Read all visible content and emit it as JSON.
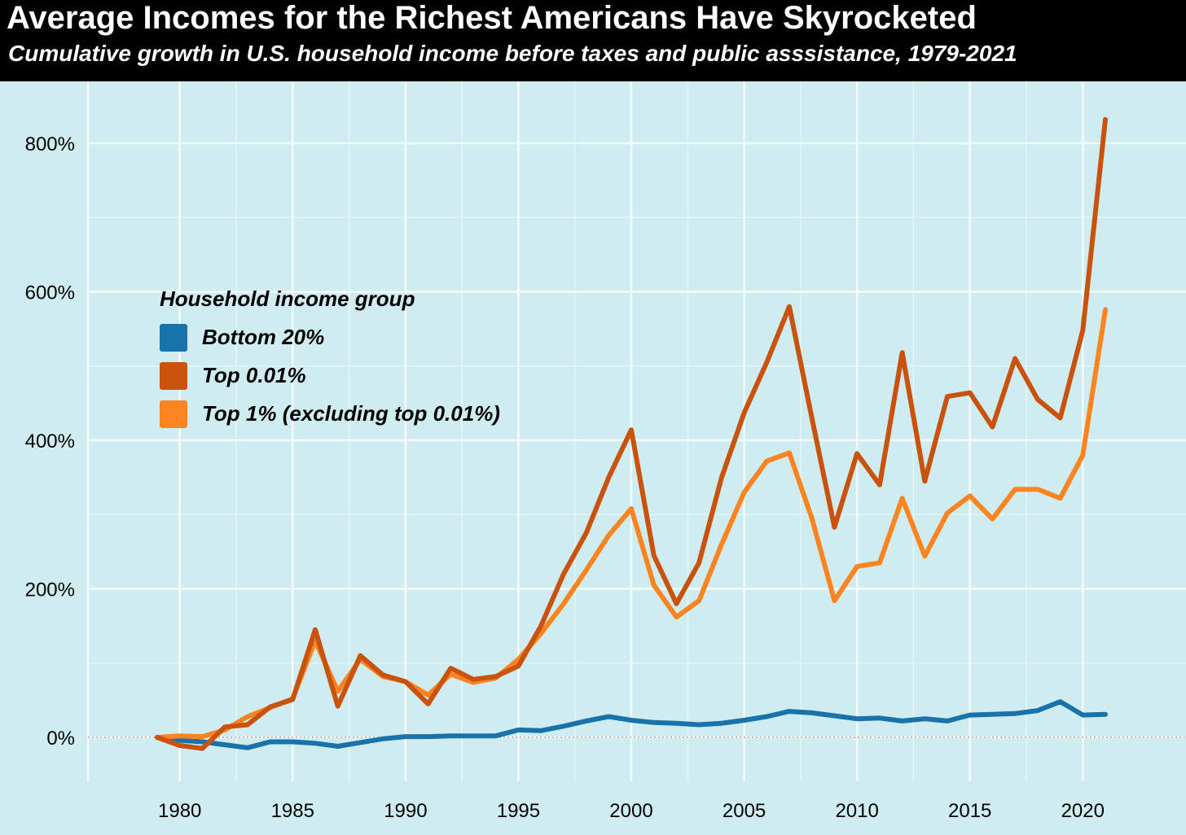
{
  "header": {
    "title": "Average Incomes for the Richest Americans Have Skyrocketed",
    "subtitle": "Cumulative growth in U.S. household income before taxes and public asssistance, 1979-2021"
  },
  "chart_data": {
    "type": "line",
    "title": "Average Incomes for the Richest Americans Have Skyrocketed",
    "subtitle": "Cumulative growth in U.S. household income before taxes and public asssistance, 1979-2021",
    "xlabel": "",
    "ylabel": "",
    "xlim": [
      1976,
      2023
    ],
    "ylim": [
      -60,
      880
    ],
    "grid": true,
    "legend_position": "upper-left",
    "legend_title": "Household income group",
    "x_ticks": [
      1980,
      1985,
      1990,
      1995,
      2000,
      2005,
      2010,
      2015,
      2020
    ],
    "x_tick_labels": [
      "1980",
      "1985",
      "1990",
      "1995",
      "2000",
      "2005",
      "2010",
      "2015",
      "2020"
    ],
    "y_ticks": [
      0,
      200,
      400,
      600,
      800
    ],
    "y_tick_labels": [
      "0%",
      "200%",
      "400%",
      "600%",
      "800%"
    ],
    "x": [
      1979,
      1980,
      1981,
      1982,
      1983,
      1984,
      1985,
      1986,
      1987,
      1988,
      1989,
      1990,
      1991,
      1992,
      1993,
      1994,
      1995,
      1996,
      1997,
      1998,
      1999,
      2000,
      2001,
      2002,
      2003,
      2004,
      2005,
      2006,
      2007,
      2008,
      2009,
      2010,
      2011,
      2012,
      2013,
      2014,
      2015,
      2016,
      2017,
      2018,
      2019,
      2020,
      2021
    ],
    "series": [
      {
        "name": "Bottom 20%",
        "color": "#1a72aa",
        "values": [
          0,
          -4,
          -6,
          -10,
          -14,
          -6,
          -6,
          -8,
          -12,
          -7,
          -2,
          1,
          1,
          2,
          2,
          2,
          10,
          9,
          15,
          22,
          28,
          23,
          20,
          19,
          17,
          19,
          23,
          28,
          35,
          33,
          29,
          25,
          26,
          22,
          25,
          22,
          30,
          31,
          32,
          36,
          48,
          30,
          31
        ]
      },
      {
        "name": "Top 0.01%",
        "color": "#c9520c",
        "values": [
          0,
          -11,
          -15,
          14,
          17,
          41,
          51,
          145,
          42,
          110,
          84,
          75,
          45,
          93,
          78,
          82,
          96,
          150,
          220,
          275,
          350,
          414,
          245,
          180,
          235,
          350,
          437,
          505,
          580,
          430,
          283,
          382,
          340,
          518,
          345,
          459,
          464,
          418,
          510,
          455,
          430,
          548,
          832
        ]
      },
      {
        "name": "Top 1% (excluding top 0.01%)",
        "color": "#fd8420",
        "values": [
          0,
          2,
          1,
          10,
          28,
          40,
          52,
          130,
          62,
          105,
          82,
          75,
          57,
          85,
          74,
          80,
          105,
          140,
          180,
          225,
          272,
          308,
          205,
          162,
          184,
          260,
          330,
          372,
          383,
          295,
          184,
          230,
          235,
          322,
          244,
          302,
          325,
          294,
          334,
          334,
          322,
          380,
          576
        ]
      }
    ]
  }
}
